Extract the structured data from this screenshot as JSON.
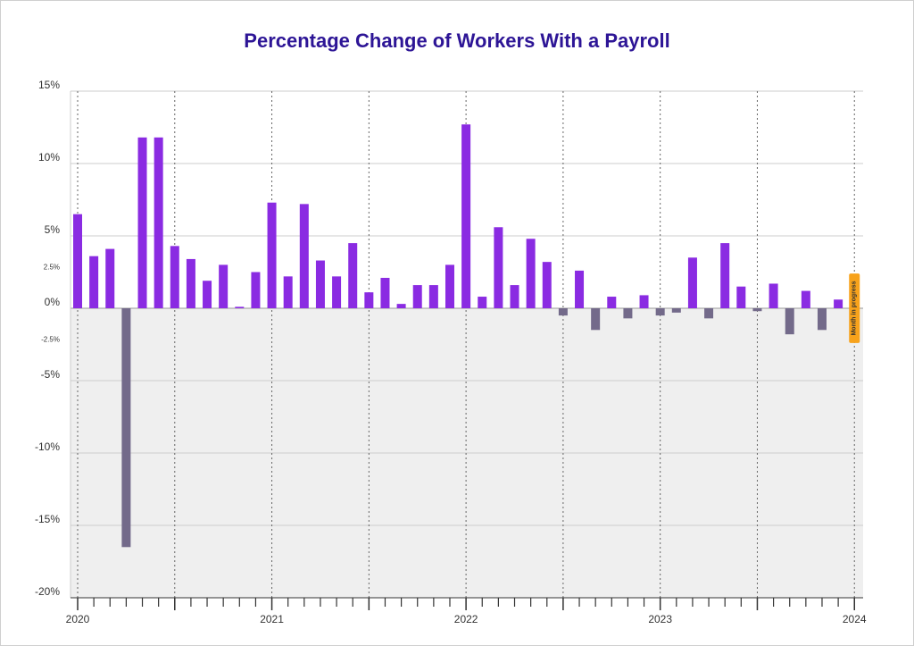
{
  "chart_data": {
    "type": "bar",
    "title": "Percentage Change of Workers With a Payroll",
    "xlabel": "",
    "ylabel": "",
    "ylim": [
      -20,
      15
    ],
    "y_ticks": [
      {
        "value": 15,
        "label": "15%"
      },
      {
        "value": 10,
        "label": "10%"
      },
      {
        "value": 5,
        "label": "5%"
      },
      {
        "value": 2.5,
        "label": "2.5%"
      },
      {
        "value": 0,
        "label": "0%"
      },
      {
        "value": -2.5,
        "label": "-2.5%"
      },
      {
        "value": -5,
        "label": "-5%"
      },
      {
        "value": -10,
        "label": "-10%"
      },
      {
        "value": -15,
        "label": "-15%"
      },
      {
        "value": -20,
        "label": "-20%"
      }
    ],
    "x_year_labels": [
      "2020",
      "2021",
      "2022",
      "2023",
      "2024"
    ],
    "start_month": "2020-01",
    "categories": [
      "2020-01",
      "2020-02",
      "2020-03",
      "2020-04",
      "2020-05",
      "2020-06",
      "2020-07",
      "2020-08",
      "2020-09",
      "2020-10",
      "2020-11",
      "2020-12",
      "2021-01",
      "2021-02",
      "2021-03",
      "2021-04",
      "2021-05",
      "2021-06",
      "2021-07",
      "2021-08",
      "2021-09",
      "2021-10",
      "2021-11",
      "2021-12",
      "2022-01",
      "2022-02",
      "2022-03",
      "2022-04",
      "2022-05",
      "2022-06",
      "2022-07",
      "2022-08",
      "2022-09",
      "2022-10",
      "2022-11",
      "2022-12",
      "2023-01",
      "2023-02",
      "2023-03",
      "2023-04",
      "2023-05",
      "2023-06",
      "2023-07",
      "2023-08",
      "2023-09",
      "2023-10",
      "2023-11",
      "2023-12"
    ],
    "values": [
      6.5,
      3.6,
      4.1,
      -16.5,
      11.8,
      11.8,
      4.3,
      3.4,
      1.9,
      3.0,
      0.1,
      2.5,
      7.3,
      2.2,
      7.2,
      3.3,
      2.2,
      4.5,
      1.1,
      2.1,
      0.3,
      1.6,
      1.6,
      3.0,
      12.7,
      0.8,
      5.6,
      1.6,
      4.8,
      3.2,
      -0.5,
      2.6,
      -1.5,
      0.8,
      -0.7,
      0.9,
      -0.5,
      -0.3,
      3.5,
      -0.7,
      4.5,
      1.5,
      -0.2,
      1.7,
      -1.8,
      1.2,
      -1.5,
      0.6
    ],
    "colors": {
      "positive": "#8a2be2",
      "negative": "#736a8a",
      "title": "#2d1596",
      "negative_band": "#efefef",
      "grid": "#cccccc",
      "badge": "#f7a21b"
    },
    "annotation": {
      "text": "Month in progress"
    },
    "grid": true,
    "legend": "none"
  }
}
